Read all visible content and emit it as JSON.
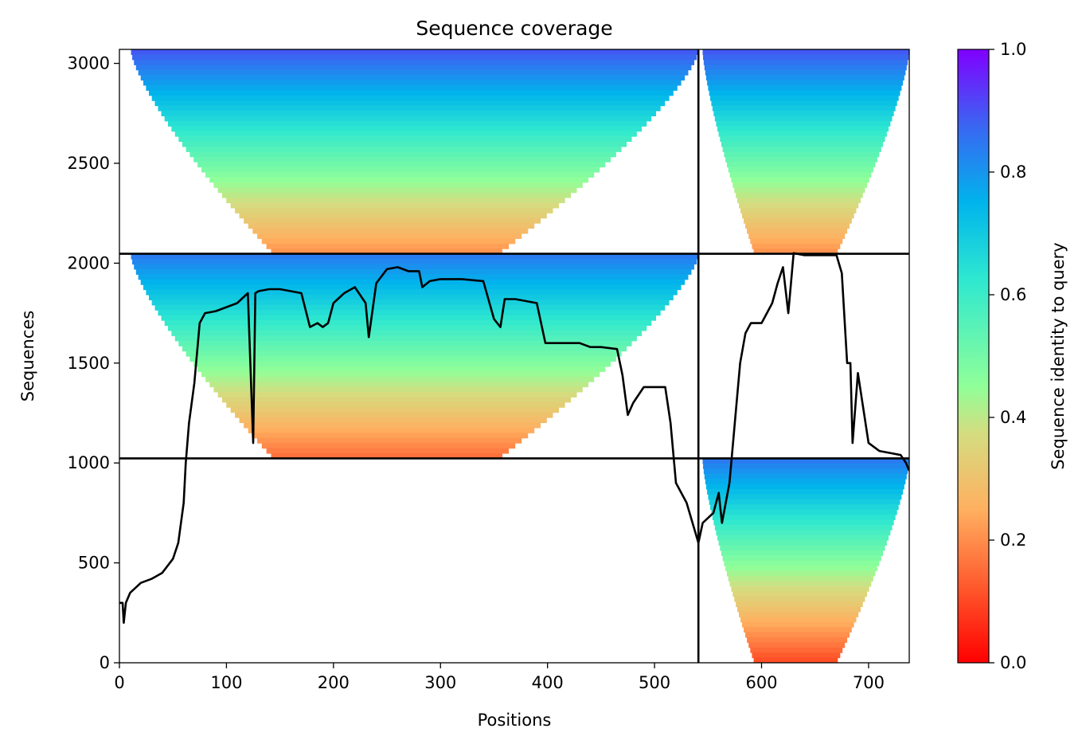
{
  "chart_data": {
    "type": "heatmap",
    "title": "Sequence coverage",
    "xlabel": "Positions",
    "ylabel": "Sequences",
    "xlim": [
      0,
      738
    ],
    "ylim": [
      0,
      3070
    ],
    "xticks": [
      0,
      100,
      200,
      300,
      400,
      500,
      600,
      700
    ],
    "yticks": [
      0,
      500,
      1000,
      1500,
      2000,
      2500,
      3000
    ],
    "colorbar": {
      "label": "Sequence identity to query",
      "range": [
        0,
        1
      ],
      "ticks": [
        "0.0",
        "0.2",
        "0.4",
        "0.6",
        "0.8",
        "1.0"
      ],
      "colormap": "rainbow_r"
    },
    "dividers": {
      "vertical_x": 541,
      "horizontal_y": [
        1023,
        2047
      ]
    },
    "blocks": [
      {
        "name": "block-top-left",
        "x_start": 0,
        "x_end": 541,
        "y_start": 2047,
        "y_end": 3070,
        "identity_top": 0.9,
        "identity_bottom": 0.2
      },
      {
        "name": "block-top-right",
        "x_start": 541,
        "x_end": 738,
        "y_start": 2047,
        "y_end": 3070,
        "identity_top": 0.9,
        "identity_bottom": 0.2
      },
      {
        "name": "block-middle-left",
        "x_start": 0,
        "x_end": 541,
        "y_start": 1023,
        "y_end": 2047,
        "identity_top": 0.85,
        "identity_bottom": 0.15
      },
      {
        "name": "block-bottom-right",
        "x_start": 541,
        "x_end": 738,
        "y_start": 0,
        "y_end": 1023,
        "identity_top": 0.85,
        "identity_bottom": 0.1
      }
    ],
    "coverage_line": {
      "color": "#000000",
      "x": [
        0,
        3,
        4,
        6,
        10,
        20,
        30,
        40,
        50,
        55,
        60,
        62,
        65,
        70,
        75,
        80,
        90,
        110,
        120,
        125,
        127,
        130,
        140,
        150,
        170,
        178,
        185,
        190,
        195,
        200,
        210,
        220,
        230,
        233,
        240,
        250,
        260,
        270,
        280,
        283,
        290,
        300,
        320,
        340,
        350,
        356,
        360,
        370,
        380,
        390,
        398,
        410,
        430,
        440,
        450,
        465,
        470,
        475,
        480,
        490,
        500,
        510,
        515,
        520,
        530,
        541,
        545,
        555,
        560,
        563,
        570,
        575,
        580,
        585,
        590,
        598,
        600,
        605,
        610,
        615,
        620,
        625,
        630,
        640,
        650,
        660,
        670,
        675,
        680,
        683,
        685,
        690,
        700,
        710,
        720,
        730,
        735,
        738
      ],
      "y": [
        300,
        300,
        200,
        300,
        350,
        400,
        420,
        450,
        520,
        600,
        800,
        1000,
        1200,
        1400,
        1700,
        1750,
        1760,
        1800,
        1850,
        1100,
        1850,
        1860,
        1870,
        1870,
        1850,
        1680,
        1700,
        1680,
        1700,
        1800,
        1850,
        1880,
        1800,
        1630,
        1900,
        1970,
        1980,
        1960,
        1960,
        1880,
        1910,
        1920,
        1920,
        1910,
        1720,
        1680,
        1820,
        1820,
        1810,
        1800,
        1600,
        1600,
        1600,
        1580,
        1580,
        1570,
        1440,
        1240,
        1300,
        1380,
        1380,
        1380,
        1200,
        900,
        800,
        600,
        700,
        750,
        850,
        700,
        900,
        1200,
        1500,
        1650,
        1700,
        1700,
        1700,
        1750,
        1800,
        1900,
        1980,
        1750,
        2050,
        2040,
        2040,
        2040,
        2040,
        1950,
        1500,
        1500,
        1100,
        1450,
        1100,
        1060,
        1050,
        1040,
        1000,
        960
      ]
    }
  }
}
